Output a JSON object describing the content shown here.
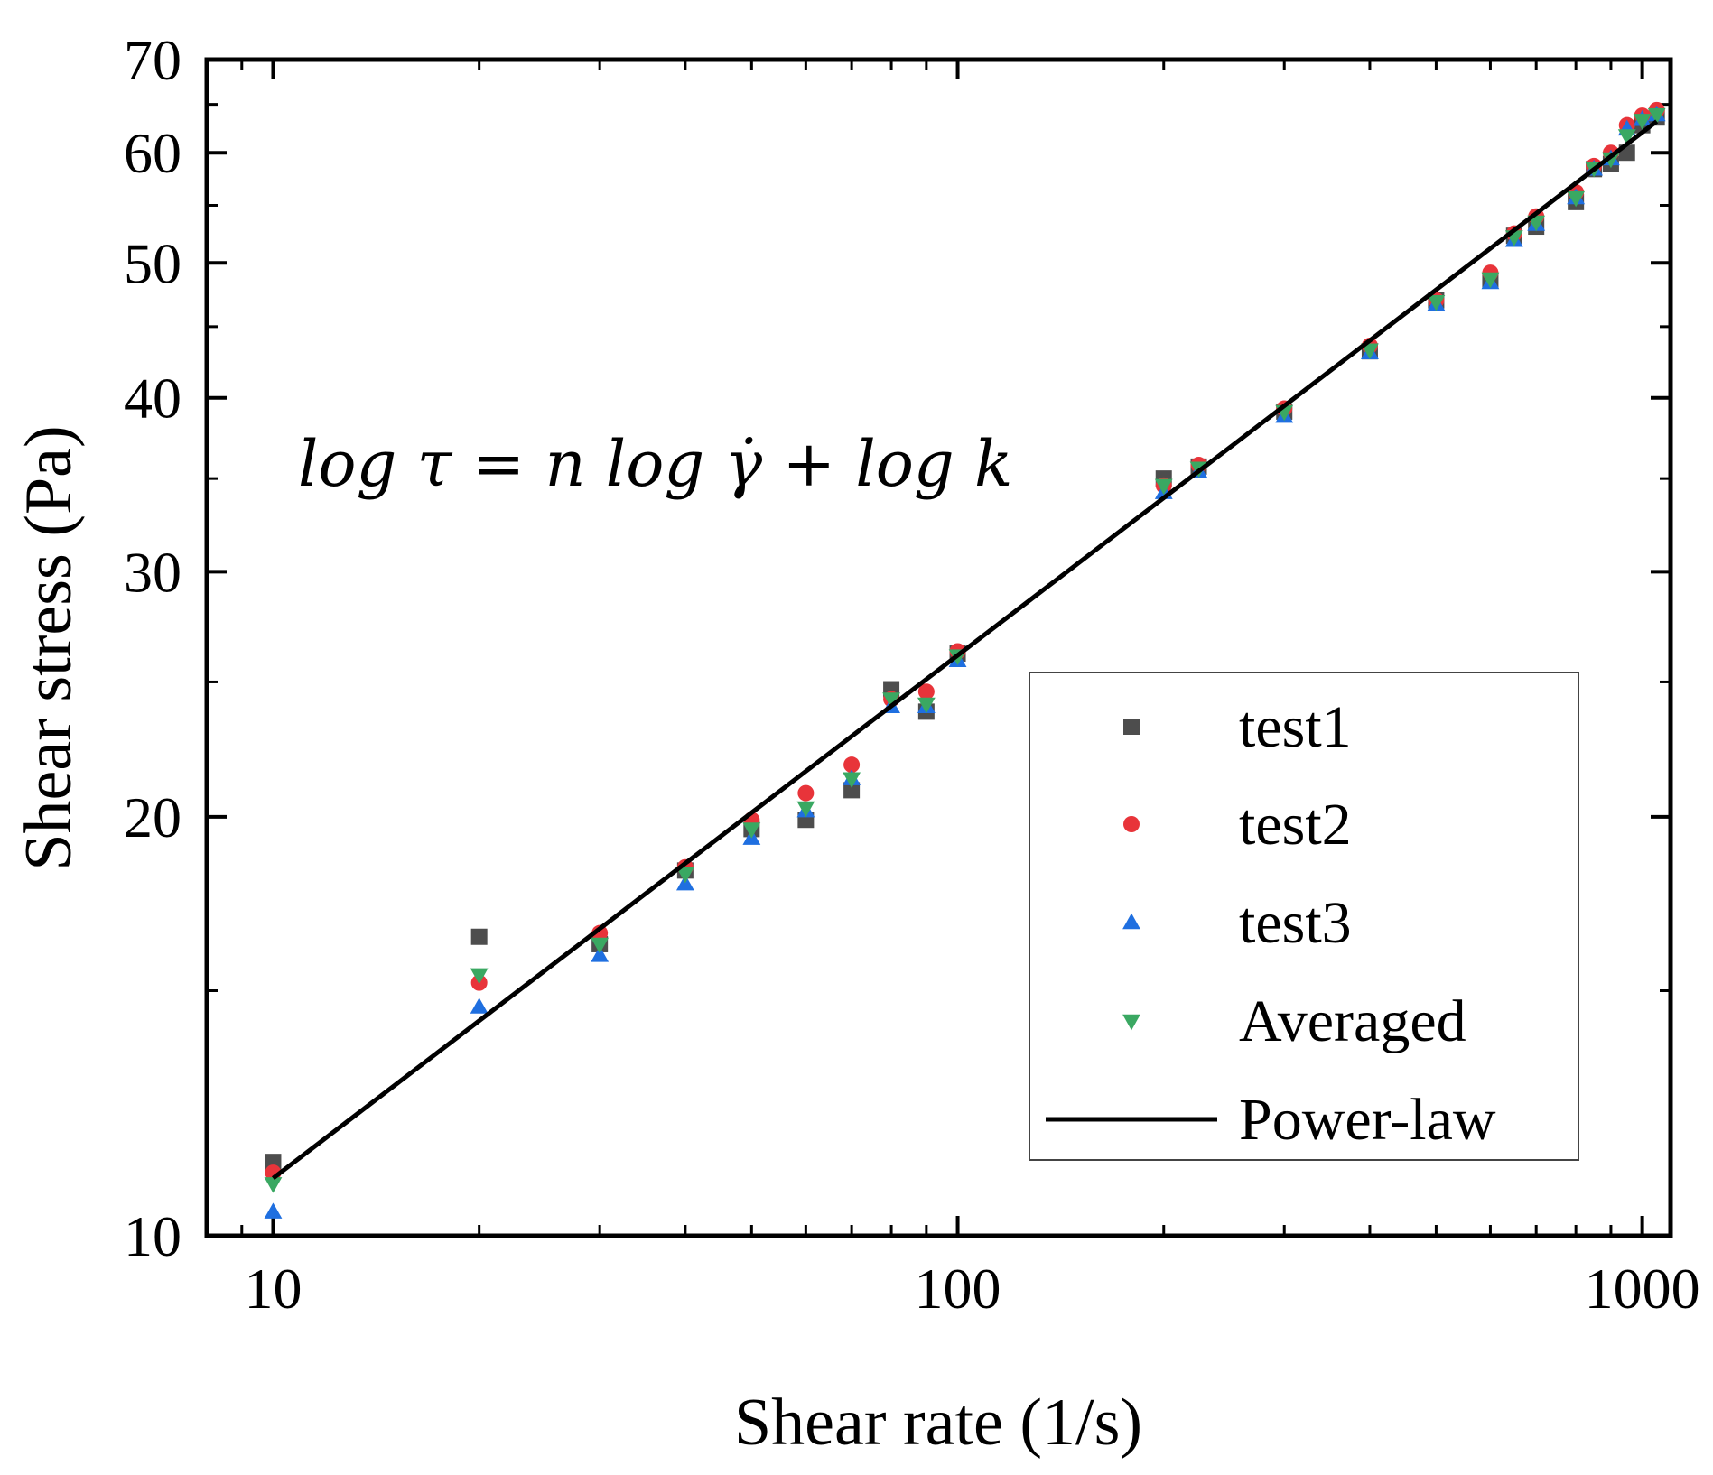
{
  "chart_data": {
    "type": "scatter",
    "xlabel": "Shear rate (1/s)",
    "ylabel": "Shear stress (Pa)",
    "xscale": "log",
    "yscale": "log",
    "xlim": [
      8,
      1100
    ],
    "ylim": [
      10,
      70
    ],
    "x_ticks": [
      10,
      100,
      1000
    ],
    "y_ticks": [
      10,
      20,
      30,
      40,
      50,
      60,
      70
    ],
    "annotation": "log τ = n log γ̇ + log k",
    "legend_position": "lower-right",
    "colors": {
      "test1": "#4d4d4d",
      "test2": "#e8343a",
      "test3": "#1f6fe0",
      "averaged": "#3aa862",
      "power_law": "#000000"
    },
    "series": [
      {
        "name": "test1",
        "marker": "square",
        "x": [
          10,
          20,
          30,
          40,
          50,
          60,
          70,
          80,
          90,
          100,
          200,
          225,
          300,
          400,
          500,
          600,
          650,
          700,
          800,
          850,
          900,
          950,
          1000,
          1050
        ],
        "y": [
          11.3,
          16.4,
          16.2,
          18.3,
          19.6,
          19.9,
          20.9,
          24.7,
          23.8,
          26.2,
          35.0,
          35.7,
          39.1,
          43.2,
          47.0,
          48.6,
          52.3,
          53.1,
          55.3,
          58.4,
          58.9,
          60.0,
          62.8,
          63.6
        ]
      },
      {
        "name": "test2",
        "marker": "circle",
        "x": [
          10,
          20,
          30,
          40,
          50,
          60,
          70,
          80,
          90,
          100,
          200,
          225,
          300,
          400,
          500,
          600,
          650,
          700,
          800,
          850,
          900,
          950,
          1000,
          1050
        ],
        "y": [
          11.1,
          15.2,
          16.5,
          18.4,
          19.9,
          20.8,
          21.8,
          24.3,
          24.6,
          26.3,
          34.6,
          35.8,
          39.3,
          43.6,
          47.0,
          49.2,
          52.5,
          54.0,
          56.2,
          58.7,
          60.0,
          62.8,
          63.8,
          64.4
        ]
      },
      {
        "name": "test3",
        "marker": "triangle-up",
        "x": [
          10,
          20,
          30,
          40,
          50,
          60,
          70,
          80,
          90,
          100,
          200,
          225,
          300,
          400,
          500,
          600,
          650,
          700,
          800,
          850,
          900,
          950,
          1000,
          1050
        ],
        "y": [
          10.4,
          14.6,
          15.9,
          17.9,
          19.3,
          20.2,
          21.3,
          24.0,
          24.0,
          25.9,
          34.2,
          35.4,
          38.8,
          43.1,
          46.7,
          48.4,
          51.9,
          53.3,
          55.7,
          58.4,
          59.4,
          62.4,
          63.4,
          63.9
        ]
      },
      {
        "name": "Averaged",
        "marker": "triangle-down",
        "x": [
          10,
          20,
          30,
          40,
          50,
          60,
          70,
          80,
          90,
          100,
          200,
          225,
          300,
          400,
          500,
          600,
          650,
          700,
          800,
          850,
          900,
          950,
          1000,
          1050
        ],
        "y": [
          10.9,
          15.4,
          16.2,
          18.2,
          19.6,
          20.3,
          21.3,
          24.3,
          24.1,
          26.1,
          34.6,
          35.6,
          39.1,
          43.3,
          46.9,
          48.7,
          52.2,
          53.5,
          55.7,
          58.5,
          59.4,
          61.7,
          63.3,
          63.9
        ]
      },
      {
        "name": "Power-law",
        "marker": "line",
        "x": [
          10,
          1050
        ],
        "y": [
          11.0,
          63.2
        ]
      }
    ]
  }
}
